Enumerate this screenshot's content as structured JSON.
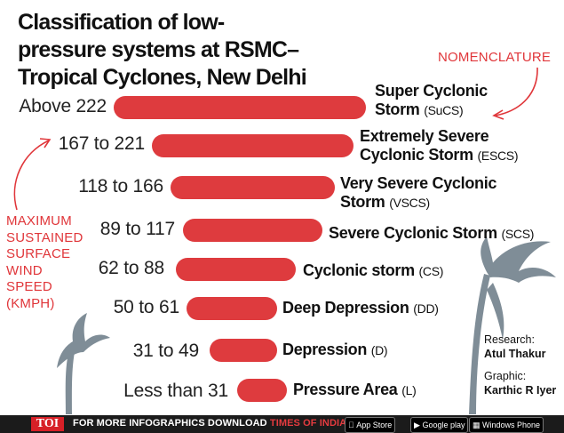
{
  "title": "Classification of low-pressure systems at RSMC–Tropical Cyclones, New Delhi",
  "title_lines": [
    "Classification of low-",
    "pressure systems at RSMC–",
    "Tropical Cyclones, New Delhi"
  ],
  "nomenclature_label": "NOMENCLATURE",
  "side_label_lines": [
    "MAXIMUM",
    "SUSTAINED",
    "SURFACE",
    "WIND",
    "SPEED",
    "(KMPH)"
  ],
  "colors": {
    "bar": "#de3b3e",
    "accent": "#e0363a",
    "tree": "#7f8d97",
    "footer": "#1b1b1b"
  },
  "chart_data": {
    "type": "bar",
    "orientation": "horizontal",
    "categories": [
      "Above 222",
      "167 to 221",
      "118 to 166",
      "89 to 117",
      "62 to 88",
      "50 to 61",
      "31 to 49",
      "Less than 31"
    ],
    "systems": [
      {
        "name_lines": [
          "Super Cyclonic",
          "Storm"
        ],
        "abbr": "(SuCS)"
      },
      {
        "name_lines": [
          "Extremely Severe",
          "Cyclonic Storm"
        ],
        "abbr": "(ESCS)"
      },
      {
        "name_lines": [
          "Very Severe Cyclonic",
          "Storm"
        ],
        "abbr": "(VSCS)"
      },
      {
        "name_lines": [
          "Severe Cyclonic Storm"
        ],
        "abbr": "(SCS)"
      },
      {
        "name_lines": [
          "Cyclonic storm"
        ],
        "abbr": "(CS)"
      },
      {
        "name_lines": [
          "Deep Depression"
        ],
        "abbr": "(DD)"
      },
      {
        "name_lines": [
          "Depression"
        ],
        "abbr": "(D)"
      },
      {
        "name_lines": [
          "Pressure Area"
        ],
        "abbr": "(L)"
      }
    ]
  },
  "credits": {
    "research_label": "Research:",
    "research_name": "Atul Thakur",
    "graphic_label": "Graphic:",
    "graphic_name": "Karthic R Iyer"
  },
  "footer": {
    "logo": "TOI",
    "text_prefix": "FOR MORE  INFOGRAPHICS DOWNLOAD ",
    "text_app": "TIMES OF INDIA APP",
    "badges": [
      "App Store",
      "Google play",
      "Windows Phone"
    ]
  }
}
